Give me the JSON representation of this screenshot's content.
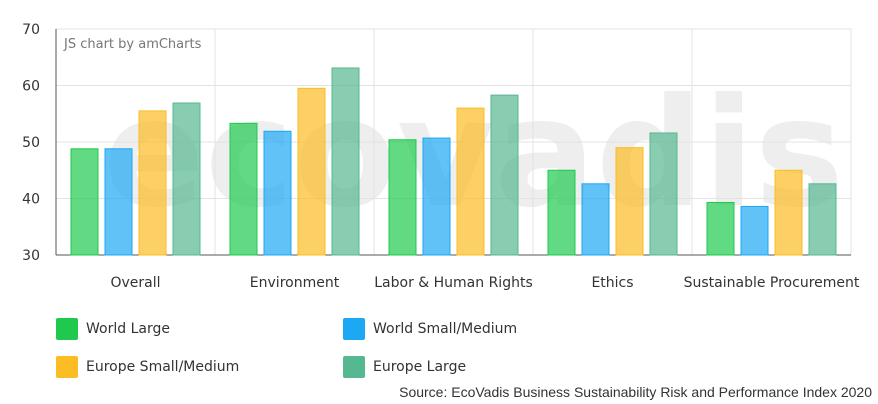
{
  "chart_data": {
    "type": "bar",
    "credit": "JS chart by amCharts",
    "watermark": "ecovadis",
    "categories": [
      "Overall",
      "Environment",
      "Labor & Human Rights",
      "Ethics",
      "Sustainable Procurement"
    ],
    "series": [
      {
        "name": "World Large",
        "color": "#1fc94e",
        "values": [
          48.8,
          53.3,
          50.4,
          45.0,
          39.3
        ]
      },
      {
        "name": "World Small/Medium",
        "color": "#1ca8f2",
        "values": [
          48.8,
          51.9,
          50.7,
          42.6,
          38.6
        ]
      },
      {
        "name": "Europe Small/Medium",
        "color": "#fbbc24",
        "values": [
          55.5,
          59.5,
          56.0,
          49.0,
          45.0
        ]
      },
      {
        "name": "Europe Large",
        "color": "#56b890",
        "values": [
          56.9,
          63.1,
          58.3,
          51.6,
          42.6
        ]
      }
    ],
    "yticks": [
      30,
      40,
      50,
      60,
      70
    ],
    "ylim": [
      30,
      70
    ],
    "grid": true,
    "legend_position": "bottom"
  },
  "source": "Source: EcoVadis Business Sustainability Risk and Performance Index 2020"
}
